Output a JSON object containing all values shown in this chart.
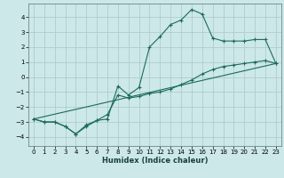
{
  "xlabel": "Humidex (Indice chaleur)",
  "bg_color": "#cce8e8",
  "grid_color": "#b0cccc",
  "line_color": "#1a6b5a",
  "xlim": [
    -0.5,
    23.5
  ],
  "ylim": [
    -4.6,
    4.9
  ],
  "xticks": [
    0,
    1,
    2,
    3,
    4,
    5,
    6,
    7,
    8,
    9,
    10,
    11,
    12,
    13,
    14,
    15,
    16,
    17,
    18,
    19,
    20,
    21,
    22,
    23
  ],
  "yticks": [
    -4,
    -3,
    -2,
    -1,
    0,
    1,
    2,
    3,
    4
  ],
  "series1_x": [
    0,
    1,
    2,
    3,
    4,
    5,
    6,
    7,
    8,
    9,
    10,
    11,
    12,
    13,
    14,
    15,
    16,
    17,
    18,
    19,
    20,
    21,
    22,
    23
  ],
  "series1_y": [
    -2.8,
    -3.0,
    -3.0,
    -3.3,
    -3.8,
    -3.3,
    -2.9,
    -2.8,
    -0.6,
    -1.2,
    -0.7,
    2.0,
    2.7,
    3.5,
    3.8,
    4.5,
    4.2,
    2.6,
    2.4,
    2.4,
    2.4,
    2.5,
    2.5,
    0.9
  ],
  "series2_x": [
    0,
    1,
    2,
    3,
    4,
    5,
    6,
    7,
    8,
    9,
    10,
    11,
    12,
    13,
    14,
    15,
    16,
    17,
    18,
    19,
    20,
    21,
    22,
    23
  ],
  "series2_y": [
    -2.8,
    -3.0,
    -3.0,
    -3.3,
    -3.8,
    -3.2,
    -2.9,
    -2.5,
    -1.2,
    -1.4,
    -1.3,
    -1.1,
    -1.0,
    -0.8,
    -0.5,
    -0.2,
    0.2,
    0.5,
    0.7,
    0.8,
    0.9,
    1.0,
    1.1,
    0.9
  ],
  "series3_x": [
    0,
    23
  ],
  "series3_y": [
    -2.8,
    0.9
  ],
  "tick_fontsize": 5.0,
  "xlabel_fontsize": 6.0
}
